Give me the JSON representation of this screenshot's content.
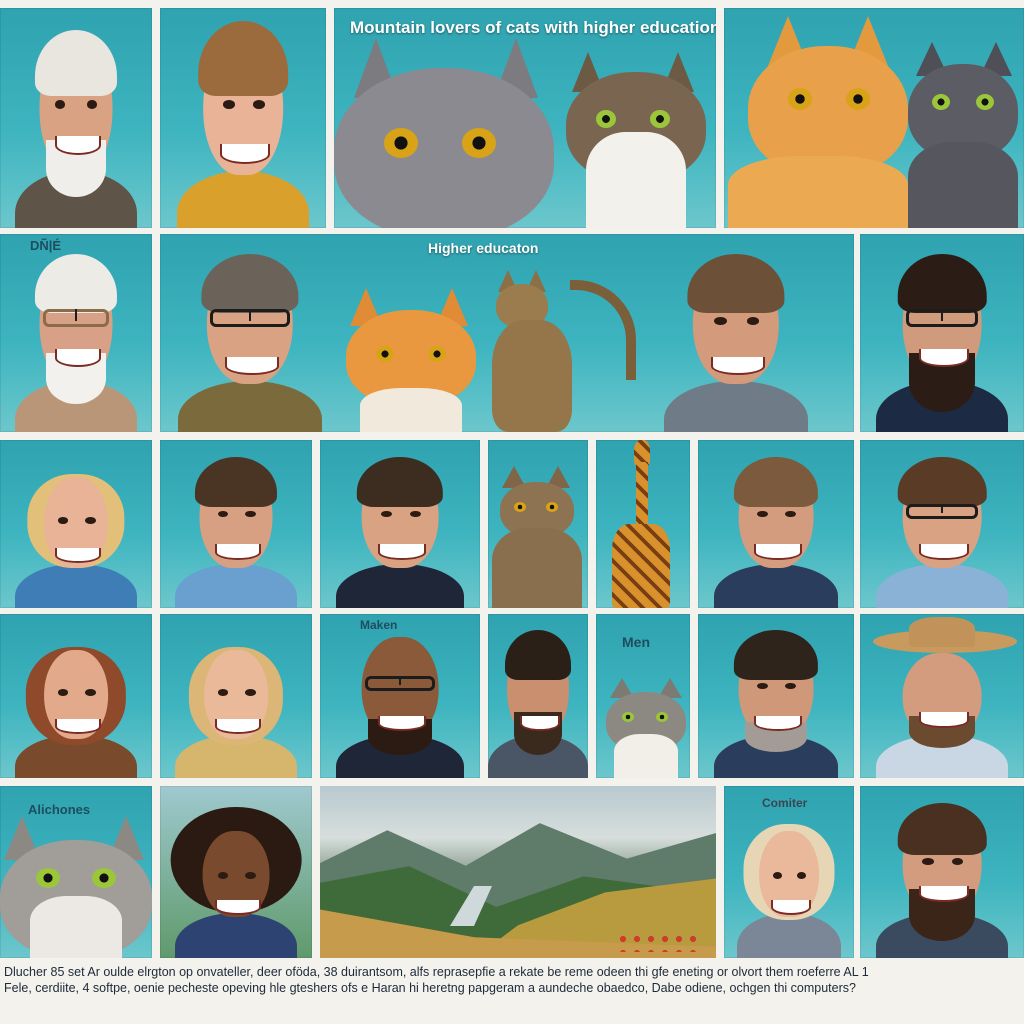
{
  "image": {
    "headline_text": "Mountain lovers of cats with higher education'",
    "labels": {
      "row2_left": "DÑ|É",
      "row2_center": "Higher educaton",
      "row4_center": "Maken",
      "row4_right": "Men",
      "row5_left": "Alichones",
      "row5_right": "Comiter"
    },
    "caption_lines": [
      "Dlucher 85 set Ar oulde elrgton op onvateller, deer oföda, 38 duirantsom, alfs reprasepfie a rekate be reme odeen thi gfe eneting or olvort them roeferre AL 1",
      "Fele, cerdiite, 4 softpe, oenie pecheste opeving hle gteshers ofs e Haran hi heretng papgeram a aundeche obaedco, Dabe odiene, ochgen thi computers?"
    ]
  },
  "colors": {
    "tile_teal": "#3db4bf",
    "caption_text": "#1c2a3a"
  }
}
